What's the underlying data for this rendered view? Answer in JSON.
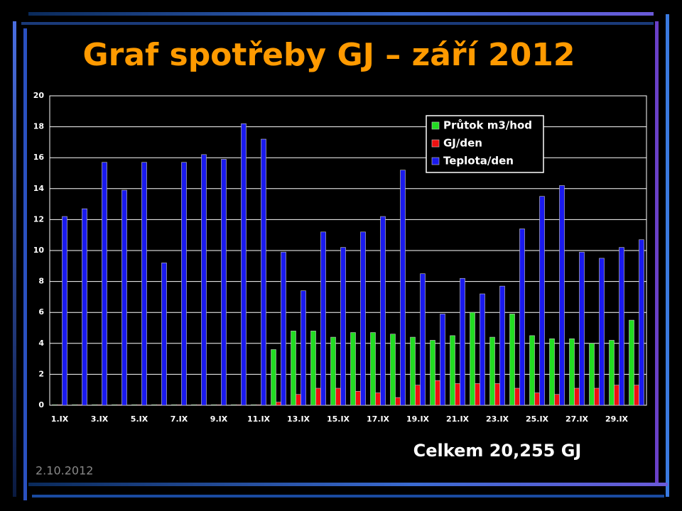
{
  "chart_data": {
    "type": "bar",
    "title": "Graf spotřeby GJ – září 2012",
    "categories": [
      "1.IX",
      null,
      "3.IX",
      null,
      "5.IX",
      null,
      "7.IX",
      null,
      "9.IX",
      null,
      "11.IX",
      null,
      "13.IX",
      null,
      "15.IX",
      null,
      "17.IX",
      null,
      "19.IX",
      null,
      "21.IX",
      null,
      "23.IX",
      null,
      "25.IX",
      null,
      "27.IX",
      null,
      "29.IX",
      null
    ],
    "series": [
      {
        "name": "Průtok m3/hod",
        "color": "#22dd22",
        "values": [
          0,
          0,
          0,
          0,
          0,
          0,
          0,
          0,
          0,
          0,
          0,
          3.6,
          4.8,
          4.8,
          4.4,
          4.7,
          4.7,
          4.6,
          4.4,
          4.2,
          4.5,
          6.0,
          4.4,
          5.9,
          4.5,
          4.3,
          4.3,
          4.0,
          4.2,
          5.5
        ]
      },
      {
        "name": "GJ/den",
        "color": "#ee1111",
        "values": [
          0,
          0,
          0,
          0,
          0,
          0,
          0,
          0,
          0,
          0,
          0,
          0.2,
          0.7,
          1.1,
          1.1,
          0.9,
          0.8,
          0.5,
          1.3,
          1.6,
          1.4,
          1.4,
          1.4,
          1.1,
          0.8,
          0.7,
          1.1,
          1.1,
          1.3,
          1.3
        ]
      },
      {
        "name": "Teplota/den",
        "color": "#1a1aee",
        "values": [
          12.2,
          12.7,
          15.7,
          13.9,
          15.7,
          9.2,
          15.7,
          16.2,
          15.9,
          18.2,
          17.2,
          9.9,
          7.4,
          11.2,
          10.2,
          11.2,
          12.2,
          15.2,
          8.5,
          5.9,
          8.2,
          7.2,
          7.7,
          11.4,
          13.5,
          14.2,
          9.9,
          9.5,
          10.2,
          10.7
        ]
      }
    ],
    "ylim": [
      0,
      20
    ],
    "yticks": [
      0,
      2,
      4,
      6,
      8,
      10,
      12,
      14,
      16,
      18,
      20
    ],
    "grid": true,
    "legend": "upper right"
  },
  "footer": {
    "total": "Celkem 20,255 GJ",
    "date": "2.10.2012"
  }
}
